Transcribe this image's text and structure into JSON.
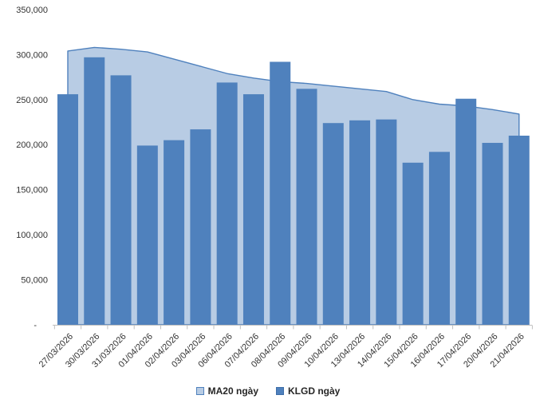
{
  "chart_data": {
    "type": "combo",
    "title": "",
    "xlabel": "",
    "ylabel": "",
    "grid": false,
    "legend_position": "bottom",
    "ylim": [
      0,
      350000
    ],
    "categories": [
      "27/03/2026",
      "30/03/2026",
      "31/03/2026",
      "01/04/2026",
      "02/04/2026",
      "03/04/2026",
      "06/04/2026",
      "07/04/2026",
      "08/04/2026",
      "09/04/2026",
      "10/04/2026",
      "13/04/2026",
      "14/04/2026",
      "15/04/2026",
      "16/04/2026",
      "17/04/2026",
      "20/04/2026",
      "21/04/2026"
    ],
    "series": [
      {
        "name": "MA20 ngày",
        "type": "area",
        "color": "#b8cce4",
        "line_color": "#4f81bd",
        "values": [
          304000,
          308000,
          306000,
          303000,
          295000,
          287000,
          279000,
          274000,
          270000,
          268000,
          265000,
          262000,
          259000,
          250000,
          245000,
          243000,
          239000,
          234000
        ]
      },
      {
        "name": "KLGD ngày",
        "type": "bar",
        "color": "#4f81bd",
        "border_color": "#3d6da8",
        "values": [
          256000,
          297000,
          277000,
          199000,
          205000,
          217000,
          269000,
          256000,
          292000,
          262000,
          224000,
          227000,
          228000,
          180000,
          192000,
          251000,
          202000,
          210000
        ]
      }
    ],
    "y_ticks": [
      {
        "value": 0,
        "label": "-"
      },
      {
        "value": 50000,
        "label": "50,000"
      },
      {
        "value": 100000,
        "label": "100,000"
      },
      {
        "value": 150000,
        "label": "150,000"
      },
      {
        "value": 200000,
        "label": "200,000"
      },
      {
        "value": 250000,
        "label": "250,000"
      },
      {
        "value": 300000,
        "label": "300,000"
      },
      {
        "value": 350000,
        "label": "350,000"
      }
    ]
  },
  "colors": {
    "axis": "#bfbfbf",
    "tick_text": "#333333",
    "legend_text": "#262626",
    "background": "#ffffff"
  }
}
